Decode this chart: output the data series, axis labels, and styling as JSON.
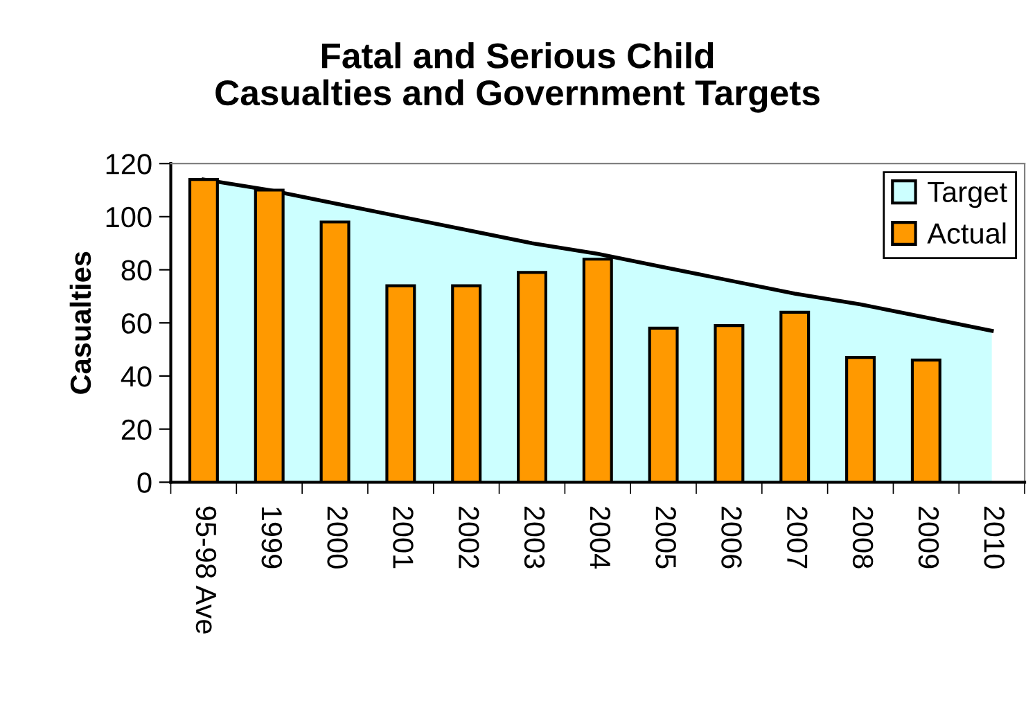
{
  "chart_data": {
    "type": "bar",
    "title": "Fatal and Serious Child\nCasualties and Government Targets",
    "ylabel": "Casualties",
    "categories": [
      "95-98 Ave",
      "1999",
      "2000",
      "2001",
      "2002",
      "2003",
      "2004",
      "2005",
      "2006",
      "2007",
      "2008",
      "2009",
      "2010"
    ],
    "series": [
      {
        "name": "Target",
        "type": "area",
        "color": "#ccffff",
        "values": [
          114,
          110,
          105,
          100,
          95,
          90,
          86,
          81,
          76,
          71,
          67,
          62,
          57
        ]
      },
      {
        "name": "Actual",
        "color": "#ff9900",
        "values": [
          114,
          110,
          98,
          74,
          74,
          79,
          84,
          58,
          59,
          64,
          47,
          46,
          null
        ]
      }
    ],
    "ylim": [
      0,
      120
    ],
    "yticks": [
      0,
      20,
      40,
      60,
      80,
      100,
      120
    ],
    "grid": false,
    "legend": "top right"
  }
}
